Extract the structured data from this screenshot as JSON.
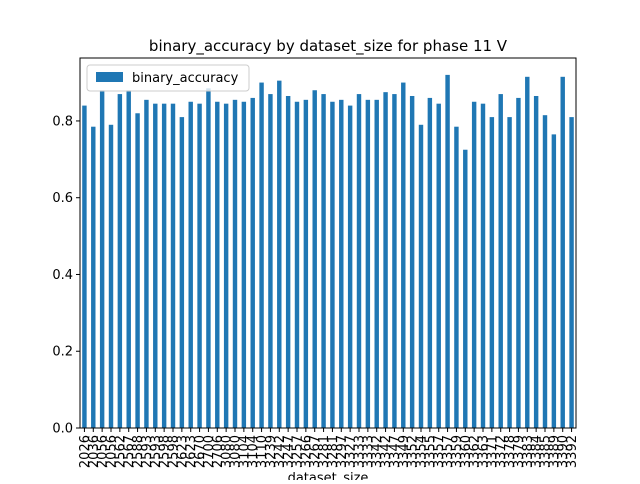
{
  "chart_data": {
    "type": "bar",
    "title": "binary_accuracy by dataset_size for phase 11 V",
    "xlabel": "dataset_size",
    "categories": [
      "2026",
      "2036",
      "2056",
      "2056",
      "2562",
      "2567",
      "2588",
      "2593",
      "2593",
      "2598",
      "2598",
      "2623",
      "2623",
      "2670",
      "2700",
      "2706",
      "3080",
      "3080",
      "3104",
      "3104",
      "3110",
      "3239",
      "3242",
      "3247",
      "3257",
      "3266",
      "3267",
      "3281",
      "3281",
      "3297",
      "3327",
      "3333",
      "3333",
      "3342",
      "3342",
      "3347",
      "3349",
      "3352",
      "3354",
      "3355",
      "3357",
      "3357",
      "3359",
      "3360",
      "3362",
      "3363",
      "3371",
      "3372",
      "3378",
      "3379",
      "3383",
      "3384",
      "3385",
      "3389",
      "3390",
      "3392"
    ],
    "series": [
      {
        "name": "binary_accuracy",
        "color": "#1f77b4",
        "values": [
          0.84,
          0.785,
          0.88,
          0.79,
          0.87,
          0.88,
          0.82,
          0.855,
          0.845,
          0.845,
          0.845,
          0.81,
          0.85,
          0.845,
          0.885,
          0.85,
          0.845,
          0.855,
          0.85,
          0.86,
          0.9,
          0.87,
          0.905,
          0.865,
          0.85,
          0.855,
          0.88,
          0.87,
          0.85,
          0.855,
          0.84,
          0.87,
          0.855,
          0.855,
          0.875,
          0.87,
          0.9,
          0.865,
          0.79,
          0.86,
          0.845,
          0.92,
          0.785,
          0.725,
          0.85,
          0.845,
          0.81,
          0.87,
          0.81,
          0.86,
          0.915,
          0.865,
          0.815,
          0.765,
          0.915,
          0.81
        ]
      }
    ],
    "ylim": [
      0,
      0.964
    ],
    "yticks": [
      {
        "value": 0,
        "label": "0.0"
      },
      0.2,
      0.4,
      0.6,
      0.8
    ],
    "legend": "upper left"
  }
}
